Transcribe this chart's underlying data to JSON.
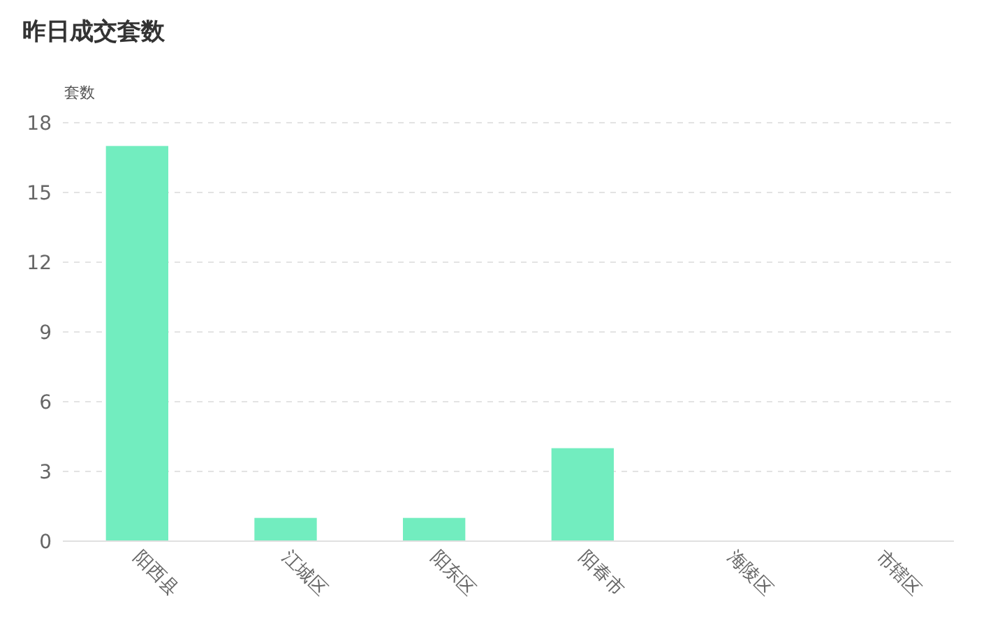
{
  "chart_data": {
    "type": "bar",
    "title": "昨日成交套数",
    "ylabel": "套数",
    "categories": [
      "阳西县",
      "江城区",
      "阳东区",
      "阳春市",
      "海陵区",
      "市辖区"
    ],
    "values": [
      17,
      1,
      1,
      4,
      0,
      0
    ],
    "color": "#72edbf",
    "ylim": [
      0,
      18
    ],
    "yticks": [
      0,
      3,
      6,
      9,
      12,
      15,
      18
    ],
    "grid": "y"
  }
}
